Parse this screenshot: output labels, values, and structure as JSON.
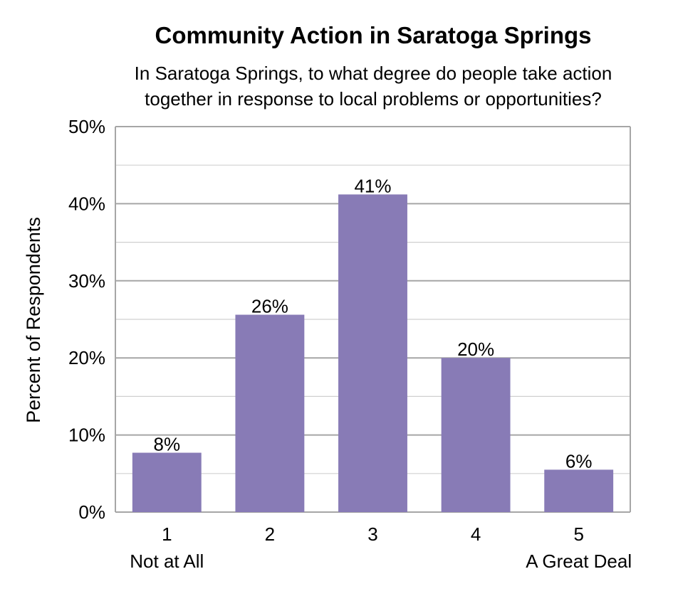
{
  "chart_data": {
    "type": "bar",
    "title": "Community Action in Saratoga Springs",
    "subtitle_lines": [
      "In Saratoga Springs, to what degree do people take action",
      "together in response to local problems or opportunities?"
    ],
    "ylabel": "Percent of Respondents",
    "xlabel": "",
    "categories": [
      "1",
      "2",
      "3",
      "4",
      "5"
    ],
    "category_sublabels": [
      "Not at All",
      "",
      "",
      "",
      "A Great Deal"
    ],
    "values": [
      7.7,
      25.6,
      41.2,
      20.0,
      5.5
    ],
    "data_labels": [
      "8%",
      "26%",
      "41%",
      "20%",
      "6%"
    ],
    "ylim": [
      0,
      50
    ],
    "yticks": [
      0,
      10,
      20,
      30,
      40,
      50
    ],
    "ytick_labels": [
      "0%",
      "10%",
      "20%",
      "30%",
      "40%",
      "50%"
    ],
    "minor_gridlines": true,
    "legend": "none",
    "bar_color": "#887bb6",
    "gridline_color": "#a6a6a6"
  }
}
